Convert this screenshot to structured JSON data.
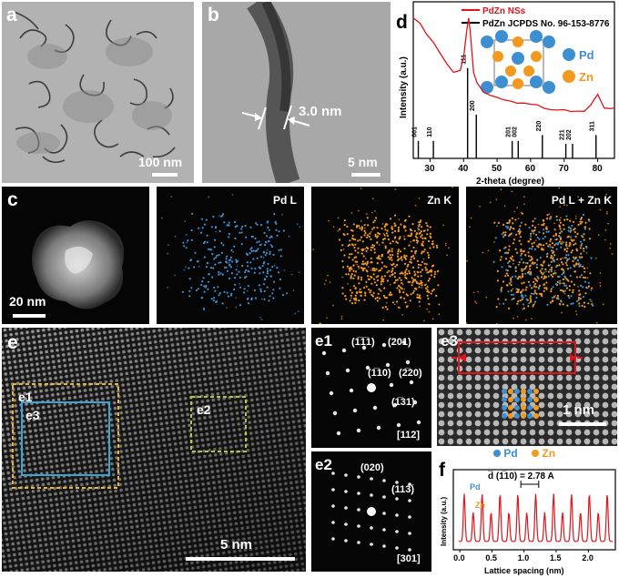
{
  "panels": {
    "a": {
      "label": "a",
      "scale": "100 nm"
    },
    "b": {
      "label": "b",
      "scale": "5 nm",
      "thickness": "3.0 nm"
    },
    "c": {
      "label": "c",
      "scale": "20 nm",
      "maps": [
        "Pd L",
        "Zn K",
        "Pd L + Zn K"
      ]
    },
    "d": {
      "label": "d"
    },
    "e": {
      "label": "e",
      "scale": "5 nm",
      "regions": [
        "e1",
        "e2",
        "e3"
      ]
    },
    "e1": {
      "label": "e1",
      "zone_axis": "[112]",
      "spots": [
        "(1̅1̅1)",
        "(201)",
        "(1̅10)",
        "(2̅20)",
        "(1̅31)"
      ]
    },
    "e2": {
      "label": "e2",
      "zone_axis": "[301]",
      "spots": [
        "(020)",
        "(113̅)"
      ]
    },
    "e3": {
      "label": "e3",
      "scale": "1 nm",
      "legend_pd": "Pd",
      "legend_zn": "Zn"
    },
    "f": {
      "label": "f",
      "label_pd": "Pd",
      "label_zn": "Zn",
      "annotation": "d̅ (1̅10) = 2.78 A"
    }
  },
  "colors": {
    "pd": "#3d8fd1",
    "zn": "#f39a1e",
    "red": "#e0141c",
    "yellow": "#e8b830",
    "cyan": "#37a5d8",
    "green": "#b9c440"
  },
  "chart_data": [
    {
      "type": "line",
      "panel": "d",
      "xlabel": "2-theta (degree)",
      "ylabel": "Intensity (a.u.)",
      "xlim": [
        25,
        85
      ],
      "xticks": [
        30,
        40,
        50,
        60,
        70,
        80
      ],
      "series": [
        {
          "name": "PdZn NSs",
          "x": [
            25,
            27,
            29,
            31,
            33,
            35,
            37,
            39,
            40,
            41,
            41.5,
            42,
            43,
            44,
            46,
            48,
            50,
            52,
            54,
            56,
            58,
            60,
            62,
            64,
            66,
            68,
            70,
            72,
            74,
            76,
            78,
            79,
            80,
            81,
            82,
            84,
            85
          ],
          "y": [
            0.93,
            0.88,
            0.82,
            0.76,
            0.69,
            0.62,
            0.56,
            0.58,
            0.68,
            0.86,
            0.93,
            0.84,
            0.58,
            0.5,
            0.44,
            0.41,
            0.39,
            0.38,
            0.37,
            0.36,
            0.355,
            0.35,
            0.345,
            0.34,
            0.335,
            0.33,
            0.33,
            0.325,
            0.325,
            0.32,
            0.34,
            0.38,
            0.42,
            0.37,
            0.33,
            0.32,
            0.32
          ]
        },
        {
          "name": "PdZn JCPDS No. 96-153-8776",
          "peaks": [
            {
              "x": 26.5,
              "h": 0.12,
              "label": "001"
            },
            {
              "x": 31.0,
              "h": 0.12,
              "label": "110"
            },
            {
              "x": 41.2,
              "h": 0.62,
              "label": "111"
            },
            {
              "x": 43.8,
              "h": 0.3,
              "label": "200"
            },
            {
              "x": 54.5,
              "h": 0.12,
              "label": "201"
            },
            {
              "x": 56.3,
              "h": 0.12,
              "label": "002"
            },
            {
              "x": 63.5,
              "h": 0.16,
              "label": "220"
            },
            {
              "x": 70.5,
              "h": 0.1,
              "label": "221"
            },
            {
              "x": 72.5,
              "h": 0.1,
              "label": "202"
            },
            {
              "x": 79.5,
              "h": 0.16,
              "label": "311"
            }
          ]
        }
      ],
      "inset_legend": [
        "Pd",
        "Zn"
      ],
      "legend": "top-right"
    },
    {
      "type": "line",
      "panel": "f",
      "xlabel": "Lattice spacing (nm)",
      "ylabel": "Intensity (a.u.)",
      "xlim": [
        -0.1,
        2.42
      ],
      "xticks": [
        0.0,
        0.5,
        1.0,
        1.5,
        2.0
      ],
      "xticklabels": [
        "0.0",
        "0.5",
        "1.0",
        "1.5",
        "2.0"
      ],
      "series": [
        {
          "name": "",
          "period": 0.278,
          "pd_peak": 0.82,
          "zn_peak": 0.5,
          "start": 0.0
        }
      ]
    }
  ]
}
